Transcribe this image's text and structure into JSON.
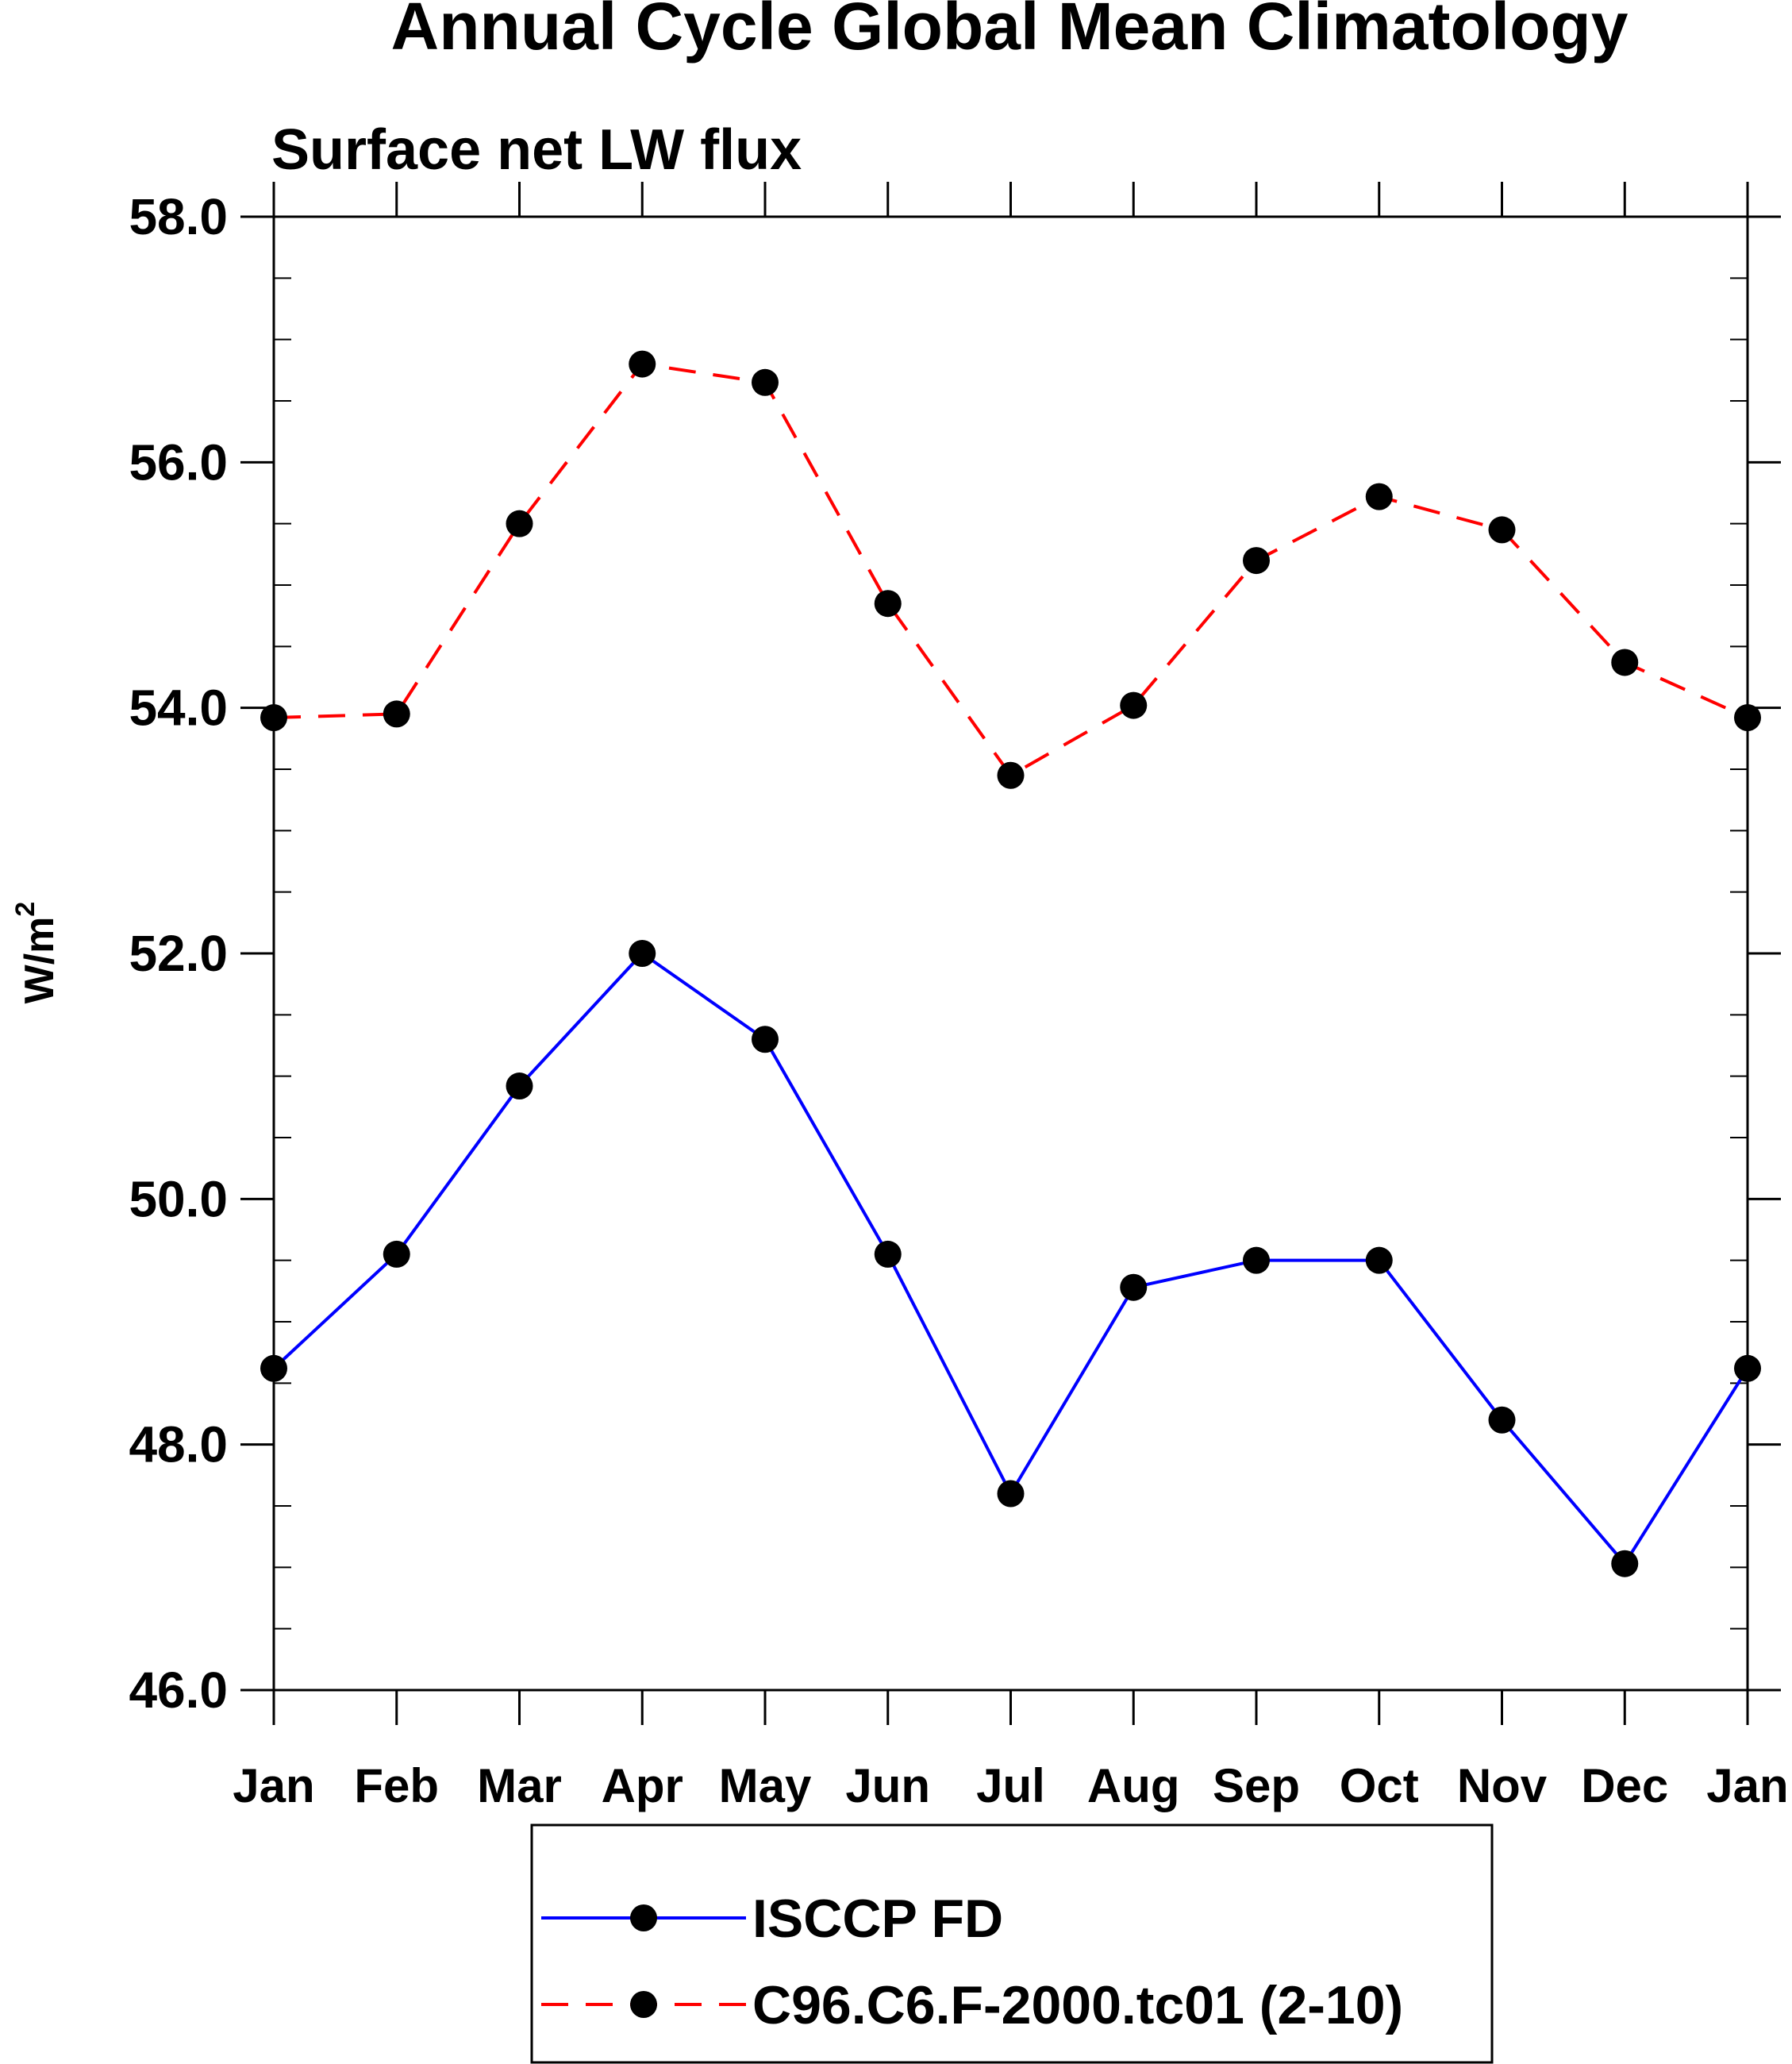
{
  "chart_data": {
    "type": "line",
    "title": "Annual Cycle Global Mean Climatology",
    "subtitle": "Surface net LW flux",
    "ylabel": "W/m",
    "ylabel_superscript": "2",
    "xlabel": "",
    "ylim": [
      46.0,
      58.0
    ],
    "yticks": [
      "46.0",
      "48.0",
      "50.0",
      "52.0",
      "54.0",
      "56.0",
      "58.0"
    ],
    "categories": [
      "Jan",
      "Feb",
      "Mar",
      "Apr",
      "May",
      "Jun",
      "Jul",
      "Aug",
      "Sep",
      "Oct",
      "Nov",
      "Dec",
      "Jan"
    ],
    "series": [
      {
        "name": "ISCCP FD",
        "color": "#0000ff",
        "dash": "solid",
        "values": [
          48.62,
          49.55,
          50.92,
          52.0,
          51.3,
          49.55,
          47.6,
          49.28,
          49.5,
          49.5,
          48.2,
          47.03,
          48.62
        ]
      },
      {
        "name": "C96.C6.F-2000.tc01 (2-10)",
        "color": "#ff0000",
        "dash": "dashed",
        "values": [
          53.92,
          53.95,
          55.5,
          56.8,
          56.65,
          54.85,
          53.45,
          54.02,
          55.2,
          55.72,
          55.45,
          54.37,
          53.92
        ]
      }
    ],
    "legend_position": "bottom-center",
    "grid": false
  }
}
